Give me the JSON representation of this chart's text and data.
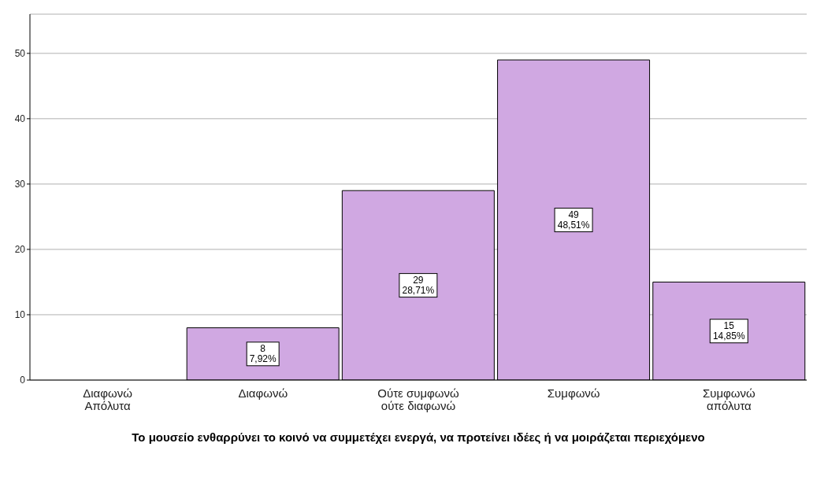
{
  "chart_data": {
    "type": "bar",
    "xlabel": "Το μουσείο ενθαρρύνει το κοινό να συμμετέχει ενεργά, να προτείνει ιδέες ή να μοιράζεται περιεχόμενο",
    "categories": [
      "Διαφωνώ Απόλυτα",
      "Διαφωνώ",
      "Ούτε συμφωνώ ούτε διαφωνώ",
      "Συμφωνώ",
      "Συμφωνώ απόλυτα"
    ],
    "values": [
      0,
      8,
      29,
      49,
      15
    ],
    "value_labels": [
      null,
      "8\n7,92%",
      "29\n28,71%",
      "49\n48,51%",
      "15\n14,85%"
    ],
    "color": "#d0a8e2",
    "ylim": [
      0,
      56
    ],
    "yticks": [
      0,
      10,
      20,
      30,
      40,
      50
    ],
    "grid": "y"
  }
}
